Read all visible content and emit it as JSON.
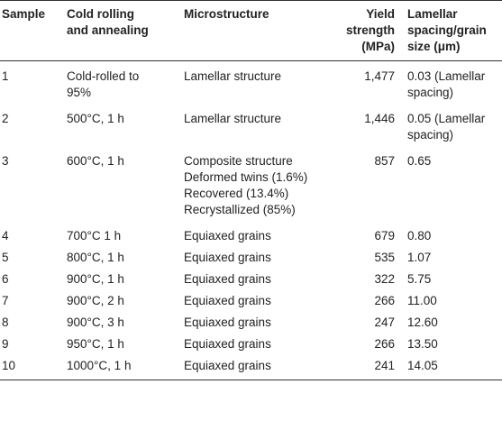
{
  "headers": {
    "sample": "Sample",
    "process_l1": "Cold rolling",
    "process_l2": "and annealing",
    "micro": "Microstructure",
    "ys_l1": "Yield",
    "ys_l2": "strength",
    "ys_l3": "(MPa)",
    "size_l1": "Lamellar",
    "size_l2": "spacing/grain",
    "size_l3": "size (μm)"
  },
  "rows": [
    {
      "sample": "1",
      "process": [
        "Cold-rolled to",
        "95%"
      ],
      "micro": [
        "Lamellar structure"
      ],
      "ys": "1,477",
      "size": [
        "0.03 (Lamellar",
        "spacing)"
      ]
    },
    {
      "sample": "2",
      "process": [
        "500°C, 1 h"
      ],
      "micro": [
        "Lamellar structure"
      ],
      "ys": "1,446",
      "size": [
        "0.05 (Lamellar",
        "spacing)"
      ]
    },
    {
      "sample": "3",
      "process": [
        "600°C, 1 h"
      ],
      "micro": [
        "Composite structure",
        "Deformed twins (1.6%)",
        "Recovered (13.4%)",
        "Recrystallized (85%)"
      ],
      "ys": "857",
      "size": [
        "0.65"
      ]
    },
    {
      "sample": "4",
      "process": [
        "700°C 1 h"
      ],
      "micro": [
        "Equiaxed grains"
      ],
      "ys": "679",
      "size": [
        "0.80"
      ]
    },
    {
      "sample": "5",
      "process": [
        "800°C, 1 h"
      ],
      "micro": [
        "Equiaxed grains"
      ],
      "ys": "535",
      "size": [
        "1.07"
      ]
    },
    {
      "sample": "6",
      "process": [
        "900°C, 1 h"
      ],
      "micro": [
        "Equiaxed grains"
      ],
      "ys": "322",
      "size": [
        "5.75"
      ]
    },
    {
      "sample": "7",
      "process": [
        "900°C, 2 h"
      ],
      "micro": [
        "Equiaxed grains"
      ],
      "ys": "266",
      "size": [
        "11.00"
      ]
    },
    {
      "sample": "8",
      "process": [
        "900°C, 3 h"
      ],
      "micro": [
        "Equiaxed grains"
      ],
      "ys": "247",
      "size": [
        "12.60"
      ]
    },
    {
      "sample": "9",
      "process": [
        "950°C, 1 h"
      ],
      "micro": [
        "Equiaxed grains"
      ],
      "ys": "266",
      "size": [
        "13.50"
      ]
    },
    {
      "sample": "10",
      "process": [
        "1000°C, 1 h"
      ],
      "micro": [
        "Equiaxed grains"
      ],
      "ys": "241",
      "size": [
        "14.05"
      ]
    }
  ]
}
